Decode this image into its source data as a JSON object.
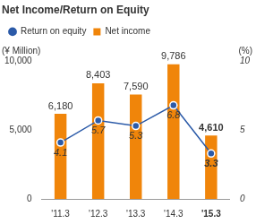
{
  "chart_data": {
    "type": "bar",
    "title": "Net Income/Return on Equity",
    "ylabel": "(¥ Million)",
    "y2label": "(%)",
    "categories": [
      "'11.3",
      "'12.3",
      "'13.3",
      "'14.3",
      "'15.3"
    ],
    "series": [
      {
        "name": "Net income",
        "type": "bar",
        "color": "#f0850a",
        "values": [
          6180,
          8403,
          7590,
          9786,
          4610
        ],
        "value_labels": [
          "6,180",
          "8,403",
          "7,590",
          "9,786",
          "4,610"
        ]
      },
      {
        "name": "Return on equity",
        "type": "line",
        "color": "#2b5aa8",
        "axis": "y2",
        "marker": "circle",
        "line_style": "solid",
        "values": [
          4.1,
          5.7,
          5.3,
          6.8,
          3.3
        ]
      }
    ],
    "ylim": [
      0,
      10000
    ],
    "yticks": [
      0,
      {
        "value": 5000,
        "label": "5,000"
      },
      {
        "value": 10000,
        "label": "10,000"
      }
    ],
    "y2lim": [
      0,
      10
    ],
    "y2ticks": [
      0,
      5,
      10
    ],
    "grid": false,
    "legend": "top left",
    "data_labels": true
  }
}
